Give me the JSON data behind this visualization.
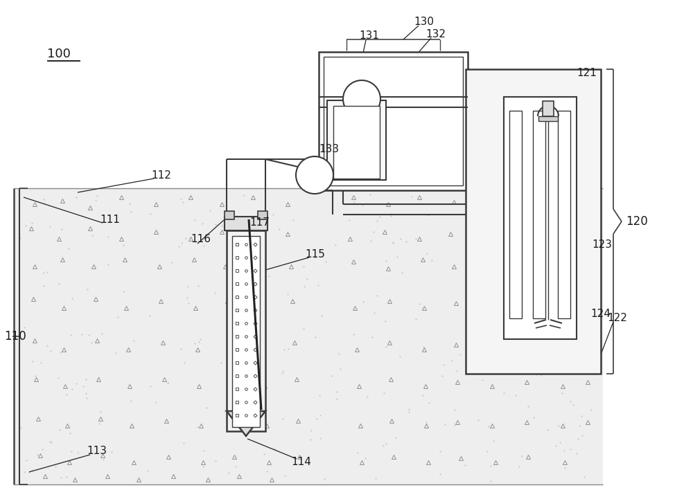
{
  "bg_color": "#ffffff",
  "line_color": "#3a3a3a",
  "label_color": "#1a1a1a",
  "fig_width": 10.0,
  "fig_height": 7.21,
  "font_size": 11,
  "soil_color": "#eeeeee",
  "probe_fill": "#f2f2f2",
  "tank_fill": "#f5f5f5"
}
